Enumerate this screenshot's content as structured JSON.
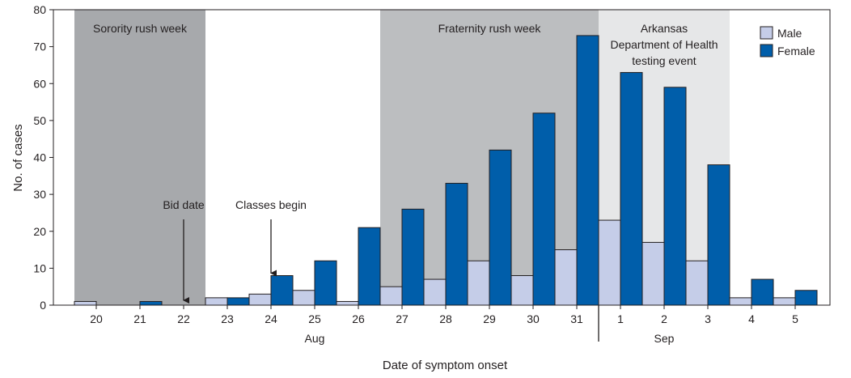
{
  "chart_data": {
    "type": "bar",
    "xlabel": "Date of symptom onset",
    "ylabel": "No. of cases",
    "ylim": [
      0,
      80
    ],
    "yticks": [
      0,
      10,
      20,
      30,
      40,
      50,
      60,
      70,
      80
    ],
    "categories": [
      "20",
      "21",
      "22",
      "23",
      "24",
      "25",
      "26",
      "27",
      "28",
      "29",
      "30",
      "31",
      "1",
      "2",
      "3",
      "4",
      "5"
    ],
    "month_labels": [
      {
        "label": "Aug",
        "from": "23",
        "to": "27"
      },
      {
        "label": "Sep",
        "from": "2",
        "to": "2"
      }
    ],
    "month_divider_after": "31",
    "series": [
      {
        "name": "Male",
        "color": "#c5cde8",
        "values": [
          1,
          0,
          0,
          2,
          3,
          4,
          1,
          5,
          7,
          12,
          8,
          15,
          23,
          17,
          12,
          2,
          2
        ]
      },
      {
        "name": "Female",
        "color": "#005eaa",
        "values": [
          0,
          1,
          0,
          2,
          8,
          12,
          21,
          26,
          33,
          42,
          52,
          73,
          63,
          59,
          38,
          7,
          4
        ]
      }
    ],
    "bands": [
      {
        "label": "Sorority rush week",
        "from": "20",
        "to": "22",
        "color": "#a7a9ac"
      },
      {
        "label": "Fraternity rush week",
        "from": "27",
        "to": "31",
        "color": "#bcbec0"
      },
      {
        "label": "Arkansas Department of Health testing event",
        "lines": [
          "Arkansas",
          "Department of Health",
          "testing event"
        ],
        "from": "1",
        "to": "3",
        "color": "#e6e7e8"
      }
    ],
    "annotations": [
      {
        "label": "Bid date",
        "at": "22"
      },
      {
        "label": "Classes begin",
        "at": "24"
      }
    ],
    "legend_position": "top-right",
    "grid": false
  }
}
